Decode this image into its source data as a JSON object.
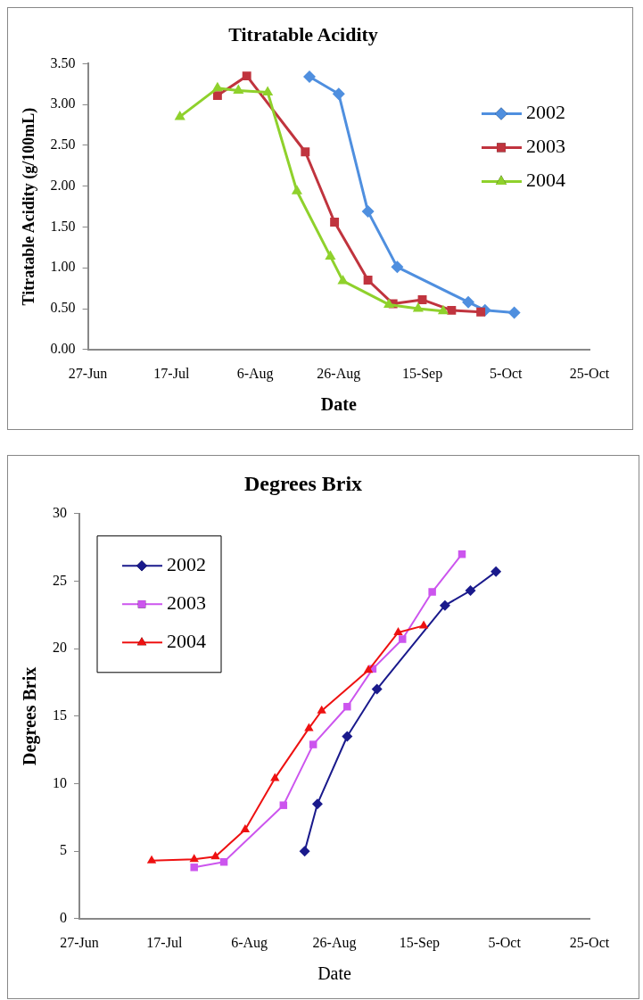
{
  "chart_data": [
    {
      "type": "line",
      "title": "Titratable Acidity",
      "xlabel": "Date",
      "ylabel": "Titratable Acidity (g/100mL)",
      "legend": "top right",
      "line_style": "solid",
      "grid": false,
      "xlim": [
        "--06-27",
        "--10-25"
      ],
      "xticks": [
        {
          "value": "--06-27",
          "label": "27-Jun"
        },
        {
          "value": "--07-17",
          "label": "17-Jul"
        },
        {
          "value": "--08-06",
          "label": "6-Aug"
        },
        {
          "value": "--08-26",
          "label": "26-Aug"
        },
        {
          "value": "--09-15",
          "label": "15-Sep"
        },
        {
          "value": "--10-05",
          "label": "5-Oct"
        },
        {
          "value": "--10-25",
          "label": "25-Oct"
        }
      ],
      "ylim": [
        0,
        3.5
      ],
      "yticks": [
        {
          "value": 0,
          "label": "0.00"
        },
        {
          "value": 0.5,
          "label": "0.50"
        },
        {
          "value": 1,
          "label": "1.00"
        },
        {
          "value": 1.5,
          "label": "1.50"
        },
        {
          "value": 2,
          "label": "2.00"
        },
        {
          "value": 2.5,
          "label": "2.50"
        },
        {
          "value": 3,
          "label": "3.00"
        },
        {
          "value": 3.5,
          "label": "3.50"
        }
      ],
      "series": [
        {
          "name": "2002",
          "color": "#4f8fdf",
          "marker": "diamond",
          "x": [
            "--08-19",
            "--08-26",
            "--09-02",
            "--09-09",
            "--09-26",
            "--09-30",
            "--10-07"
          ],
          "values": [
            3.34,
            3.13,
            1.69,
            1.01,
            0.58,
            0.48,
            0.45
          ]
        },
        {
          "name": "2003",
          "color": "#c0343e",
          "marker": "square",
          "x": [
            "--07-28",
            "--08-04",
            "--08-18",
            "--08-25",
            "--09-02",
            "--09-08",
            "--09-15",
            "--09-22",
            "--09-29"
          ],
          "values": [
            3.11,
            3.35,
            2.42,
            1.56,
            0.85,
            0.56,
            0.61,
            0.48,
            0.46
          ]
        },
        {
          "name": "2004",
          "color": "#8fd12c",
          "marker": "triangle",
          "x": [
            "--07-19",
            "--07-28",
            "--08-02",
            "--08-09",
            "--08-16",
            "--08-24",
            "--08-27",
            "--09-07",
            "--09-14",
            "--09-20"
          ],
          "values": [
            2.85,
            3.2,
            3.17,
            3.15,
            1.94,
            1.14,
            0.84,
            0.55,
            0.5,
            0.47
          ]
        }
      ]
    },
    {
      "type": "line",
      "title": "Degrees Brix",
      "xlabel": "Date",
      "ylabel": "Degrees Brix",
      "legend": "top left",
      "line_style": "solid",
      "grid": false,
      "xlim": [
        "--06-27",
        "--10-25"
      ],
      "xticks": [
        {
          "value": "--06-27",
          "label": "27-Jun"
        },
        {
          "value": "--07-17",
          "label": "17-Jul"
        },
        {
          "value": "--08-06",
          "label": "6-Aug"
        },
        {
          "value": "--08-26",
          "label": "26-Aug"
        },
        {
          "value": "--09-15",
          "label": "15-Sep"
        },
        {
          "value": "--10-05",
          "label": "5-Oct"
        },
        {
          "value": "--10-25",
          "label": "25-Oct"
        }
      ],
      "ylim": [
        0,
        30
      ],
      "yticks": [
        0,
        5,
        10,
        15,
        20,
        25,
        30
      ],
      "series": [
        {
          "name": "2002",
          "color": "#1a1a8c",
          "marker": "diamond",
          "x": [
            "--08-19",
            "--08-22",
            "--08-29",
            "--09-05",
            "--09-21",
            "--09-27",
            "--10-03"
          ],
          "values": [
            5.0,
            8.5,
            13.5,
            17.0,
            23.2,
            24.3,
            25.7
          ]
        },
        {
          "name": "2003",
          "color": "#cc55ee",
          "marker": "square",
          "x": [
            "--07-24",
            "--07-31",
            "--08-14",
            "--08-21",
            "--08-29",
            "--09-04",
            "--09-11",
            "--09-18",
            "--09-25"
          ],
          "values": [
            3.8,
            4.2,
            8.4,
            12.9,
            15.7,
            18.5,
            20.7,
            24.2,
            27.0
          ]
        },
        {
          "name": "2004",
          "color": "#ee1111",
          "marker": "triangle",
          "x": [
            "--07-14",
            "--07-24",
            "--07-29",
            "--08-05",
            "--08-12",
            "--08-20",
            "--08-23",
            "--09-03",
            "--09-10",
            "--09-16"
          ],
          "values": [
            4.3,
            4.4,
            4.6,
            6.6,
            10.4,
            14.1,
            15.4,
            18.4,
            21.2,
            21.7
          ]
        }
      ]
    }
  ]
}
